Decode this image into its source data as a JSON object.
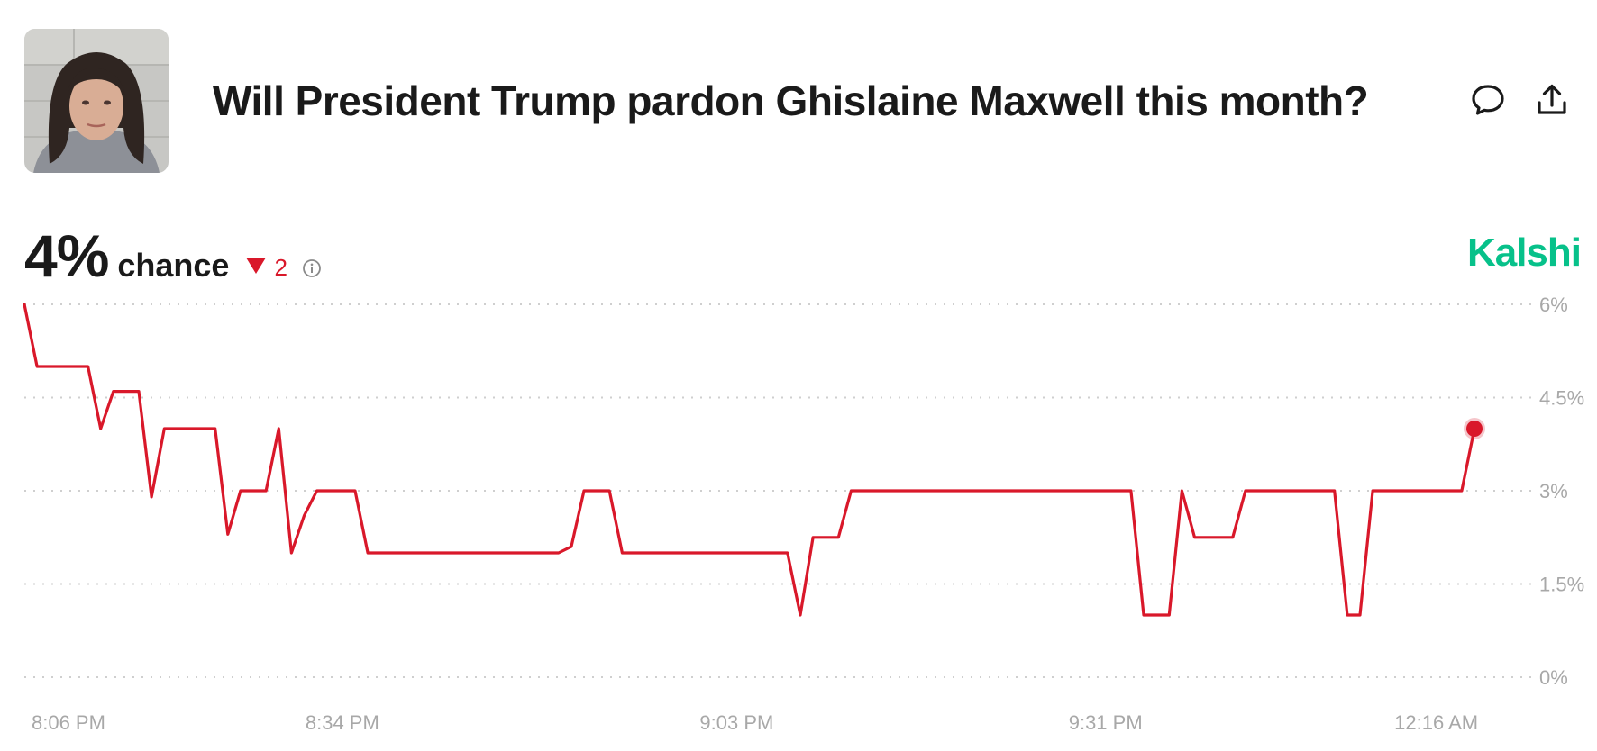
{
  "header": {
    "title": "Will President Trump pardon Ghislaine Maxwell this month?",
    "comment_icon": "comment-bubble-icon",
    "share_icon": "share-upload-icon"
  },
  "stats": {
    "chance_value": "4%",
    "chance_label": "chance",
    "delta_value": "2",
    "delta_direction": "down",
    "delta_color": "#d9182a",
    "info_icon": "info-icon"
  },
  "brand": {
    "name": "Kalshi",
    "color": "#07c18a"
  },
  "chart_data": {
    "type": "line",
    "title": "",
    "xlabel": "",
    "ylabel": "",
    "line_color": "#d9182a",
    "grid": true,
    "y_axis_side": "right",
    "ylim": [
      0,
      6
    ],
    "y_ticks": [
      {
        "value": 6,
        "label": "6%"
      },
      {
        "value": 4.5,
        "label": "4.5%"
      },
      {
        "value": 3,
        "label": "3%"
      },
      {
        "value": 1.5,
        "label": "1.5%"
      },
      {
        "value": 0,
        "label": "0%"
      }
    ],
    "x_ticks": [
      {
        "index": 0,
        "label": "8:06 PM"
      },
      {
        "index": 25,
        "label": "8:34 PM"
      },
      {
        "index": 56,
        "label": "9:03 PM"
      },
      {
        "index": 85,
        "label": "9:31 PM"
      },
      {
        "index": 111,
        "label": "12:16 AM"
      }
    ],
    "series": [
      {
        "values": [
          6,
          5,
          5,
          5,
          5,
          5,
          4,
          4.6,
          4.6,
          4.6,
          2.9,
          4,
          4,
          4,
          4,
          4,
          2.3,
          3,
          3,
          3,
          4,
          2,
          2.6,
          3,
          3,
          3,
          3,
          2,
          2,
          2,
          2,
          2,
          2,
          2,
          2,
          2,
          2,
          2,
          2,
          2,
          2,
          2,
          2,
          2.1,
          3,
          3,
          3,
          2,
          2,
          2,
          2,
          2,
          2,
          2,
          2,
          2,
          2,
          2,
          2,
          2,
          2,
          1,
          2.25,
          2.25,
          2.25,
          3,
          3,
          3,
          3,
          3,
          3,
          3,
          3,
          3,
          3,
          3,
          3,
          3,
          3,
          3,
          3,
          3,
          3,
          3,
          3,
          3,
          3,
          3,
          1,
          1,
          1,
          3,
          2.25,
          2.25,
          2.25,
          2.25,
          3,
          3,
          3,
          3,
          3,
          3,
          3,
          3,
          1,
          1,
          3,
          3,
          3,
          3,
          3,
          3,
          3,
          3,
          4
        ]
      }
    ]
  }
}
